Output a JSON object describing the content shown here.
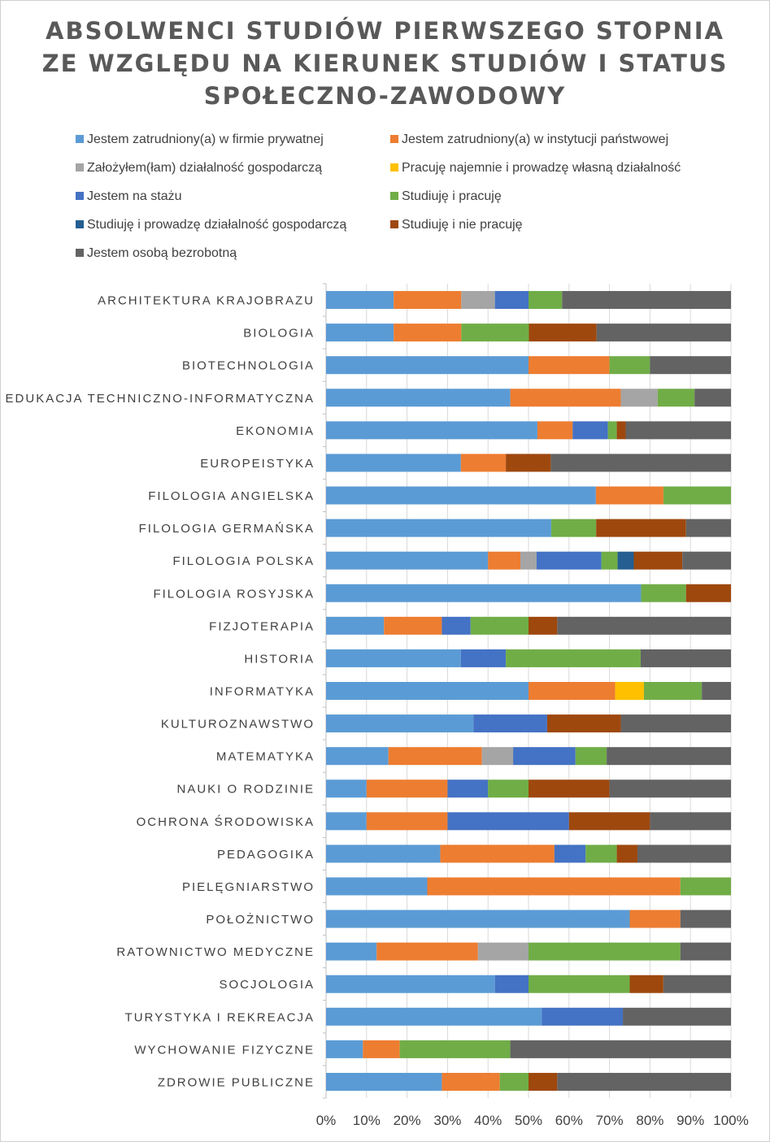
{
  "chart_data": {
    "type": "bar",
    "orientation": "horizontal",
    "stacked": "percent",
    "title": [
      "ABSOLWENCI STUDIÓW PIERWSZEGO STOPNIA",
      "ZE WZGLĘDU NA KIERUNEK STUDIÓW I STATUS",
      "SPOŁECZNO-ZAWODOWY"
    ],
    "xlim": [
      0,
      100
    ],
    "xticks": [
      "0%",
      "10%",
      "20%",
      "30%",
      "40%",
      "50%",
      "60%",
      "70%",
      "80%",
      "90%",
      "100%"
    ],
    "grid": true,
    "legend": "top",
    "categories": [
      "ARCHITEKTURA KRAJOBRAZU",
      "BIOLOGIA",
      "BIOTECHNOLOGIA",
      "EDUKACJA TECHNICZNO-INFORMATYCZNA",
      "EKONOMIA",
      "EUROPEISTYKA",
      "FILOLOGIA ANGIELSKA",
      "FILOLOGIA GERMAŃSKA",
      "FILOLOGIA POLSKA",
      "FILOLOGIA ROSYJSKA",
      "FIZJOTERAPIA",
      "HISTORIA",
      "INFORMATYKA",
      "KULTUROZNAWSTWO",
      "MATEMATYKA",
      "NAUKI O RODZINIE",
      "OCHRONA ŚRODOWISKA",
      "PEDAGOGIKA",
      "PIELĘGNIARSTWO",
      "POŁOŻNICTWO",
      "RATOWNICTWO MEDYCZNE",
      "SOCJOLOGIA",
      "TURYSTYKA I REKREACJA",
      "WYCHOWANIE FIZYCZNE",
      "ZDROWIE PUBLICZNE"
    ],
    "series": [
      {
        "name": "Jestem zatrudniony(a) w firmie prywatnej",
        "color": "#5B9BD5",
        "values": [
          16.7,
          16.7,
          50,
          45.5,
          52.2,
          33.3,
          66.7,
          55.6,
          40,
          77.8,
          14.3,
          33.3,
          50,
          36.4,
          15.4,
          10,
          10,
          28.2,
          25,
          75,
          12.5,
          41.7,
          53.3,
          9.1,
          28.6
        ]
      },
      {
        "name": "Jestem zatrudniony(a) w instytucji państwowej",
        "color": "#ED7D31",
        "values": [
          16.7,
          16.7,
          20,
          27.3,
          8.7,
          11.1,
          16.7,
          0,
          8,
          0,
          14.3,
          0,
          21.4,
          0,
          23.1,
          20,
          20,
          28.2,
          62.5,
          12.5,
          25,
          0,
          0,
          9.1,
          14.3
        ]
      },
      {
        "name": "Założyłem(łam) działalność gospodarczą",
        "color": "#A5A5A5",
        "values": [
          8.3,
          0,
          0,
          9.1,
          0,
          0,
          0,
          0,
          4,
          0,
          0,
          0,
          0,
          0,
          7.7,
          0,
          0,
          0,
          0,
          0,
          12.5,
          0,
          0,
          0,
          0
        ]
      },
      {
        "name": "Pracuję najemnie i prowadzę własną działalność",
        "color": "#FFC000",
        "values": [
          0,
          0,
          0,
          0,
          0,
          0,
          0,
          0,
          0,
          0,
          0,
          0,
          7.1,
          0,
          0,
          0,
          0,
          0,
          0,
          0,
          0,
          0,
          0,
          0,
          0
        ]
      },
      {
        "name": "Jestem na stażu",
        "color": "#4472C4",
        "values": [
          8.3,
          0,
          0,
          0,
          8.7,
          0,
          0,
          0,
          16,
          0,
          7.1,
          11.1,
          0,
          18.2,
          15.4,
          10,
          30,
          7.7,
          0,
          0,
          0,
          8.3,
          20,
          0,
          0
        ]
      },
      {
        "name": "Studiuję i pracuję",
        "color": "#70AD47",
        "values": [
          8.3,
          16.7,
          10,
          9.1,
          2.2,
          0,
          16.7,
          11.1,
          4,
          11.1,
          14.3,
          33.3,
          14.3,
          0,
          7.7,
          10,
          0,
          7.7,
          12.5,
          0,
          37.5,
          25,
          0,
          27.3,
          7.1
        ]
      },
      {
        "name": "Studiuję i prowadzę działalność gospodarczą",
        "color": "#255E91",
        "values": [
          0,
          0,
          0,
          0,
          0,
          0,
          0,
          0,
          4,
          0,
          0,
          0,
          0,
          0,
          0,
          0,
          0,
          0,
          0,
          0,
          0,
          0,
          0,
          0,
          0
        ]
      },
      {
        "name": "Studiuję i nie pracuję",
        "color": "#9E480E",
        "values": [
          0,
          16.7,
          0,
          0,
          2.2,
          11.1,
          0,
          22.2,
          12,
          11.1,
          7.1,
          0,
          0,
          18.2,
          0,
          20,
          20,
          5.1,
          0,
          0,
          0,
          8.3,
          0,
          0,
          7.1
        ]
      },
      {
        "name": "Jestem osobą bezrobotną",
        "color": "#636363",
        "values": [
          41.7,
          33.2,
          20,
          9.0,
          26.0,
          44.5,
          0,
          11.1,
          12,
          0,
          42.9,
          22.3,
          7.2,
          27.2,
          30.7,
          30,
          20,
          23.1,
          0,
          12.5,
          12.5,
          16.7,
          26.7,
          54.5,
          42.9
        ]
      }
    ]
  }
}
